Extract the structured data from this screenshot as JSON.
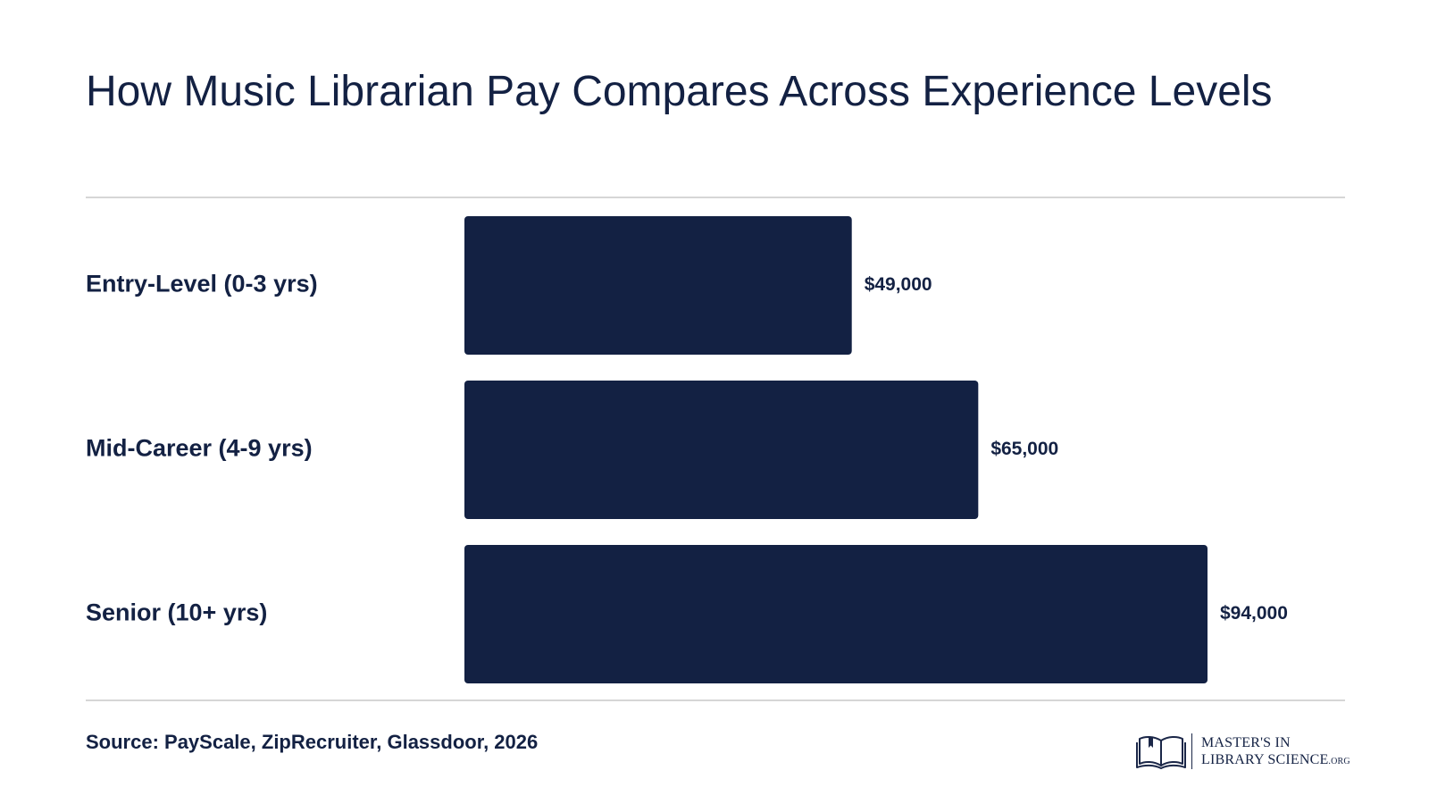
{
  "title": "How Music Librarian Pay Compares Across Experience Levels",
  "source": "Source: PayScale, ZipRecruiter, Glassdoor, 2026",
  "logo": {
    "line1": "MASTER'S IN",
    "line2": "LIBRARY SCIENCE",
    "suffix": ".ORG",
    "icon": "open-book-icon"
  },
  "colors": {
    "bar": "#132143",
    "text": "#132143",
    "rule": "#d6d6d6",
    "background": "#ffffff"
  },
  "chart_data": {
    "type": "bar",
    "orientation": "horizontal",
    "title": "How Music Librarian Pay Compares Across Experience Levels",
    "categories": [
      "Entry-Level (0-3 yrs)",
      "Mid-Career (4-9 yrs)",
      "Senior (10+ yrs)"
    ],
    "values": [
      49000,
      65000,
      94000
    ],
    "data_labels": [
      "$49,000",
      "$65,000",
      "$94,000"
    ],
    "xlabel": "",
    "ylabel": "",
    "xlim": [
      0,
      94000
    ],
    "grid": false,
    "legend": "none"
  }
}
